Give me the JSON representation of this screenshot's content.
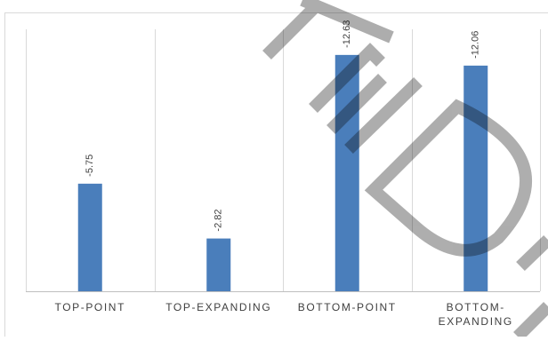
{
  "chart_data": {
    "type": "bar",
    "categories": [
      "TOP-POINT",
      "TOP-EXPANDING",
      "BOTTOM-POINT",
      "BOTTOM-EXPANDING"
    ],
    "category_label_lines": [
      [
        "TOP-POINT"
      ],
      [
        "TOP-EXPANDING"
      ],
      [
        "BOTTOM-POINT"
      ],
      [
        "BOTTOM-",
        "EXPANDING"
      ]
    ],
    "values": [
      -5.75,
      -2.82,
      -12.63,
      -12.06
    ],
    "data_labels": [
      "-5.75",
      "-2.82",
      "-12.63",
      "-12.06"
    ],
    "plotted_as": "magnitude",
    "ylim": [
      0,
      14
    ],
    "grid": "vertical category separators",
    "legend": "none",
    "title": "",
    "xlabel": "",
    "ylabel": ""
  },
  "colors": {
    "bar": "#4a7ebb",
    "grid": "#d9d9d9",
    "axis": "#bfbfbf",
    "label": "#404040",
    "watermark": "#0a0a0a"
  },
  "watermark": {
    "text": "RED",
    "opacity": 0.33
  }
}
